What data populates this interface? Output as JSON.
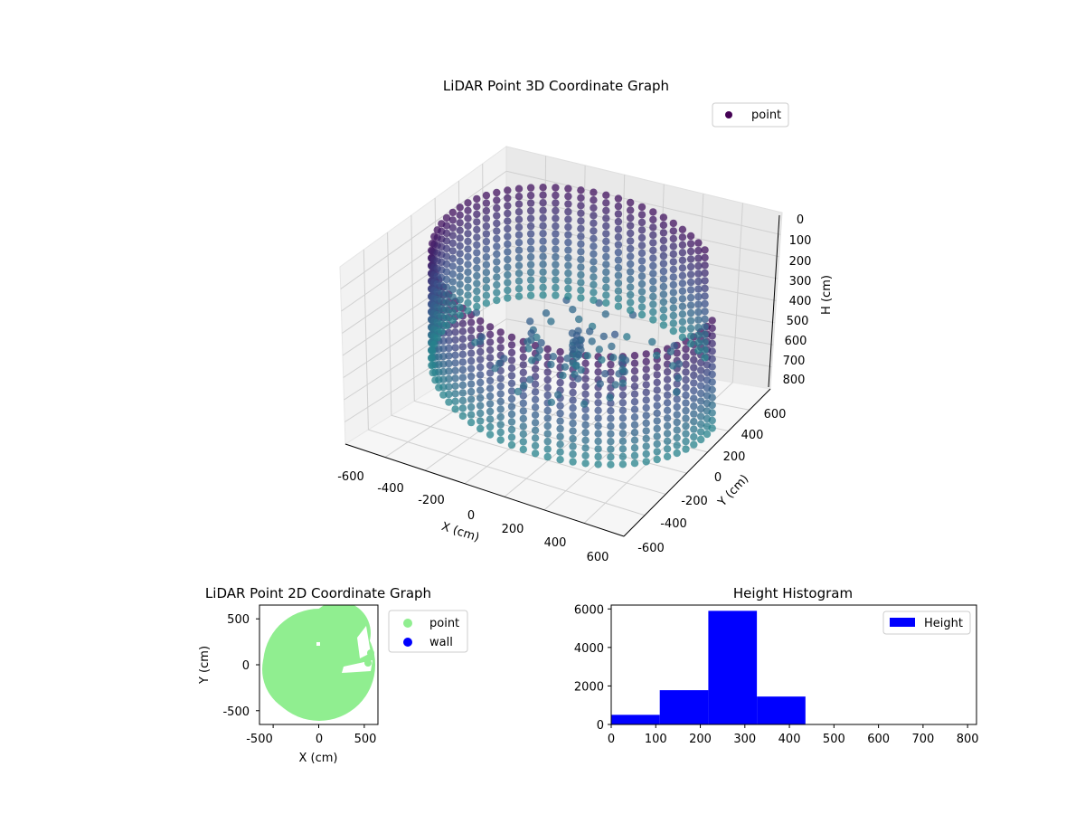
{
  "chart_data": [
    {
      "type": "scatter",
      "title": "LiDAR Point 3D Coordinate Graph",
      "xlabel": "X (cm)",
      "ylabel": "Y (cm)",
      "zlabel": "H (cm)",
      "xlim": [
        -650,
        650
      ],
      "ylim": [
        -650,
        650
      ],
      "zlim": [
        850,
        0
      ],
      "x_ticks": [
        "-600",
        "-400",
        "-200",
        "0",
        "200",
        "400",
        "600"
      ],
      "y_ticks": [
        "-600",
        "-400",
        "-200",
        "0",
        "200",
        "400",
        "600"
      ],
      "z_ticks": [
        "0",
        "100",
        "200",
        "300",
        "400",
        "500",
        "600",
        "700",
        "800"
      ],
      "legend": [
        "point"
      ],
      "legend_position": "top-right",
      "grid": true,
      "colormap": [
        "#440154",
        "#3b528b",
        "#21918c"
      ],
      "description_series": {
        "name": "point",
        "wall_radius": 600,
        "wall_height_range": [
          0,
          800
        ],
        "open_sector_deg": [
          5,
          55
        ]
      }
    },
    {
      "type": "scatter",
      "title": "LiDAR Point 2D Coordinate Graph",
      "xlabel": "X (cm)",
      "ylabel": "Y (cm)",
      "xlim": [
        -650,
        650
      ],
      "ylim": [
        -650,
        650
      ],
      "x_ticks": [
        "-500",
        "0",
        "500"
      ],
      "y_ticks": [
        "500",
        "0",
        "-500"
      ],
      "legend": [
        "point",
        "wall"
      ],
      "legend_position": "right-outside",
      "series_colors": {
        "point": "#90ee90",
        "wall": "#0000ff"
      }
    },
    {
      "type": "bar",
      "title": "Height Histogram",
      "xlim": [
        0,
        820
      ],
      "ylim": [
        0,
        6200
      ],
      "x_ticks": [
        "0",
        "100",
        "200",
        "300",
        "400",
        "500",
        "600",
        "700",
        "800"
      ],
      "y_ticks": [
        "0",
        "2000",
        "4000",
        "6000"
      ],
      "legend": [
        "Height"
      ],
      "legend_position": "top-right",
      "bar_color": "#0000ff",
      "bins": [
        {
          "start": 0,
          "end": 109,
          "count": 500
        },
        {
          "start": 109,
          "end": 218,
          "count": 1780
        },
        {
          "start": 218,
          "end": 327,
          "count": 5900
        },
        {
          "start": 327,
          "end": 436,
          "count": 1450
        },
        {
          "start": 436,
          "end": 545,
          "count": 0
        },
        {
          "start": 545,
          "end": 654,
          "count": 0
        },
        {
          "start": 654,
          "end": 763,
          "count": 0
        },
        {
          "start": 763,
          "end": 820,
          "count": 0
        }
      ]
    }
  ]
}
